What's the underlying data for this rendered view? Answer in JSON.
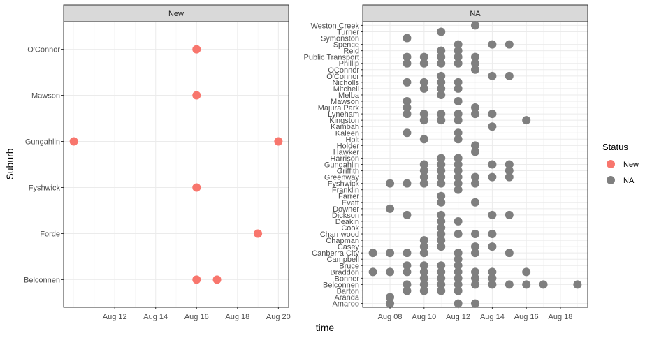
{
  "chart_data": {
    "type": "scatter",
    "xlabel": "time",
    "ylabel": "Suburb",
    "legend": {
      "title": "Status",
      "placement": "right",
      "entries": [
        {
          "label": "New",
          "color": "#F8766D"
        },
        {
          "label": "NA",
          "color": "#7F7F7F"
        }
      ]
    },
    "grid": true,
    "panels": [
      {
        "strip": "New",
        "xlim": [
          "2020-08-10",
          "2020-08-20"
        ],
        "x_ticks": [
          {
            "date": "2020-08-12",
            "label": "Aug 12"
          },
          {
            "date": "2020-08-14",
            "label": "Aug 14"
          },
          {
            "date": "2020-08-16",
            "label": "Aug 16"
          },
          {
            "date": "2020-08-18",
            "label": "Aug 18"
          },
          {
            "date": "2020-08-20",
            "label": "Aug 20"
          }
        ],
        "categories": [
          "Belconnen",
          "Forde",
          "Fyshwick",
          "Gungahlin",
          "Mawson",
          "O'Connor"
        ],
        "points": [
          {
            "suburb": "O'Connor",
            "date": "2020-08-16"
          },
          {
            "suburb": "Mawson",
            "date": "2020-08-16"
          },
          {
            "suburb": "Gungahlin",
            "date": "2020-08-10"
          },
          {
            "suburb": "Gungahlin",
            "date": "2020-08-20"
          },
          {
            "suburb": "Fyshwick",
            "date": "2020-08-16"
          },
          {
            "suburb": "Forde",
            "date": "2020-08-19"
          },
          {
            "suburb": "Belconnen",
            "date": "2020-08-16"
          },
          {
            "suburb": "Belconnen",
            "date": "2020-08-17"
          }
        ]
      },
      {
        "strip": "NA",
        "xlim": [
          "2020-08-07",
          "2020-08-19"
        ],
        "x_ticks": [
          {
            "date": "2020-08-08",
            "label": "Aug 08"
          },
          {
            "date": "2020-08-10",
            "label": "Aug 10"
          },
          {
            "date": "2020-08-12",
            "label": "Aug 12"
          },
          {
            "date": "2020-08-14",
            "label": "Aug 14"
          },
          {
            "date": "2020-08-16",
            "label": "Aug 16"
          },
          {
            "date": "2020-08-18",
            "label": "Aug 18"
          }
        ],
        "categories": [
          "Amaroo",
          "Aranda",
          "Barton",
          "Belconnen",
          "Bonner",
          "Braddon",
          "Bruce",
          "Campbell",
          "Canberra City",
          "Casey",
          "Chapman",
          "Charnwood",
          "Cook",
          "Deakin",
          "Dickson",
          "Downer",
          "Evatt",
          "Farrer",
          "Franklin",
          "Fyshwick",
          "Greenway",
          "Griffith",
          "Gungahlin",
          "Harrison",
          "Hawker",
          "Holder",
          "Holt",
          "Kaleen",
          "Kambah",
          "Kingston",
          "Lyneham",
          "Majura Park",
          "Mawson",
          "Melba",
          "Mitchell",
          "Nicholls",
          "O'Connor",
          "OConnor",
          "Phillip",
          "Public Transport",
          "Reid",
          "Spence",
          "Symonston",
          "Turner",
          "Weston Creek"
        ],
        "points": [
          {
            "suburb": "Weston Creek",
            "dates": [
              "2020-08-13"
            ]
          },
          {
            "suburb": "Turner",
            "dates": [
              "2020-08-11"
            ]
          },
          {
            "suburb": "Symonston",
            "dates": [
              "2020-08-09"
            ]
          },
          {
            "suburb": "Spence",
            "dates": [
              "2020-08-12",
              "2020-08-14",
              "2020-08-15"
            ]
          },
          {
            "suburb": "Reid",
            "dates": [
              "2020-08-11",
              "2020-08-12"
            ]
          },
          {
            "suburb": "Public Transport",
            "dates": [
              "2020-08-09",
              "2020-08-10",
              "2020-08-11",
              "2020-08-12",
              "2020-08-13"
            ]
          },
          {
            "suburb": "Phillip",
            "dates": [
              "2020-08-09",
              "2020-08-10",
              "2020-08-11",
              "2020-08-12",
              "2020-08-13"
            ]
          },
          {
            "suburb": "OConnor",
            "dates": [
              "2020-08-13"
            ]
          },
          {
            "suburb": "O'Connor",
            "dates": [
              "2020-08-11",
              "2020-08-14",
              "2020-08-15"
            ]
          },
          {
            "suburb": "Nicholls",
            "dates": [
              "2020-08-09",
              "2020-08-10",
              "2020-08-11",
              "2020-08-12"
            ]
          },
          {
            "suburb": "Mitchell",
            "dates": [
              "2020-08-10",
              "2020-08-11",
              "2020-08-12"
            ]
          },
          {
            "suburb": "Melba",
            "dates": [
              "2020-08-11"
            ]
          },
          {
            "suburb": "Mawson",
            "dates": [
              "2020-08-09",
              "2020-08-12"
            ]
          },
          {
            "suburb": "Majura Park",
            "dates": [
              "2020-08-09",
              "2020-08-13"
            ]
          },
          {
            "suburb": "Lyneham",
            "dates": [
              "2020-08-09",
              "2020-08-10",
              "2020-08-11",
              "2020-08-12",
              "2020-08-13",
              "2020-08-14"
            ]
          },
          {
            "suburb": "Kingston",
            "dates": [
              "2020-08-10",
              "2020-08-11",
              "2020-08-12",
              "2020-08-16"
            ]
          },
          {
            "suburb": "Kambah",
            "dates": [
              "2020-08-14"
            ]
          },
          {
            "suburb": "Kaleen",
            "dates": [
              "2020-08-09",
              "2020-08-12"
            ]
          },
          {
            "suburb": "Holt",
            "dates": [
              "2020-08-10",
              "2020-08-12"
            ]
          },
          {
            "suburb": "Holder",
            "dates": [
              "2020-08-13"
            ]
          },
          {
            "suburb": "Hawker",
            "dates": [
              "2020-08-13"
            ]
          },
          {
            "suburb": "Harrison",
            "dates": [
              "2020-08-11",
              "2020-08-12"
            ]
          },
          {
            "suburb": "Gungahlin",
            "dates": [
              "2020-08-10",
              "2020-08-11",
              "2020-08-12",
              "2020-08-14",
              "2020-08-15"
            ]
          },
          {
            "suburb": "Griffith",
            "dates": [
              "2020-08-10",
              "2020-08-11",
              "2020-08-12",
              "2020-08-15"
            ]
          },
          {
            "suburb": "Greenway",
            "dates": [
              "2020-08-10",
              "2020-08-11",
              "2020-08-12",
              "2020-08-13",
              "2020-08-14",
              "2020-08-15"
            ]
          },
          {
            "suburb": "Fyshwick",
            "dates": [
              "2020-08-08",
              "2020-08-09",
              "2020-08-10",
              "2020-08-11",
              "2020-08-12",
              "2020-08-13"
            ]
          },
          {
            "suburb": "Franklin",
            "dates": [
              "2020-08-12"
            ]
          },
          {
            "suburb": "Farrer",
            "dates": [
              "2020-08-11"
            ]
          },
          {
            "suburb": "Evatt",
            "dates": [
              "2020-08-11",
              "2020-08-13"
            ]
          },
          {
            "suburb": "Downer",
            "dates": [
              "2020-08-08"
            ]
          },
          {
            "suburb": "Dickson",
            "dates": [
              "2020-08-09",
              "2020-08-11",
              "2020-08-14",
              "2020-08-15"
            ]
          },
          {
            "suburb": "Deakin",
            "dates": [
              "2020-08-11",
              "2020-08-12"
            ]
          },
          {
            "suburb": "Cook",
            "dates": [
              "2020-08-11"
            ]
          },
          {
            "suburb": "Charnwood",
            "dates": [
              "2020-08-11",
              "2020-08-12",
              "2020-08-13",
              "2020-08-14"
            ]
          },
          {
            "suburb": "Chapman",
            "dates": [
              "2020-08-10",
              "2020-08-11"
            ]
          },
          {
            "suburb": "Casey",
            "dates": [
              "2020-08-10",
              "2020-08-11",
              "2020-08-13",
              "2020-08-14"
            ]
          },
          {
            "suburb": "Canberra City",
            "dates": [
              "2020-08-07",
              "2020-08-08",
              "2020-08-09",
              "2020-08-10",
              "2020-08-12",
              "2020-08-13",
              "2020-08-15"
            ]
          },
          {
            "suburb": "Campbell",
            "dates": [
              "2020-08-12"
            ]
          },
          {
            "suburb": "Bruce",
            "dates": [
              "2020-08-09",
              "2020-08-10",
              "2020-08-11",
              "2020-08-12"
            ]
          },
          {
            "suburb": "Braddon",
            "dates": [
              "2020-08-07",
              "2020-08-08",
              "2020-08-09",
              "2020-08-10",
              "2020-08-11",
              "2020-08-12",
              "2020-08-13",
              "2020-08-14",
              "2020-08-16"
            ]
          },
          {
            "suburb": "Bonner",
            "dates": [
              "2020-08-10",
              "2020-08-11",
              "2020-08-12",
              "2020-08-13",
              "2020-08-14"
            ]
          },
          {
            "suburb": "Belconnen",
            "dates": [
              "2020-08-09",
              "2020-08-10",
              "2020-08-11",
              "2020-08-12",
              "2020-08-13",
              "2020-08-14",
              "2020-08-15",
              "2020-08-16",
              "2020-08-17",
              "2020-08-19"
            ]
          },
          {
            "suburb": "Barton",
            "dates": [
              "2020-08-09",
              "2020-08-10",
              "2020-08-11",
              "2020-08-12"
            ]
          },
          {
            "suburb": "Aranda",
            "dates": [
              "2020-08-08"
            ]
          },
          {
            "suburb": "Amaroo",
            "dates": [
              "2020-08-08",
              "2020-08-12",
              "2020-08-13"
            ]
          }
        ]
      }
    ]
  }
}
